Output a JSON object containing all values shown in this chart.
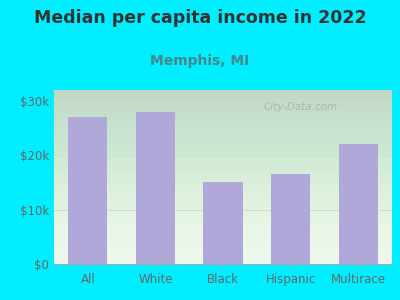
{
  "title": "Median per capita income in 2022",
  "subtitle": "Memphis, MI",
  "categories": [
    "All",
    "White",
    "Black",
    "Hispanic",
    "Multirace"
  ],
  "values": [
    27000,
    28000,
    15000,
    16500,
    22000
  ],
  "bar_color": "#b0a8d8",
  "background_outer": "#00eeff",
  "background_inner_top": "#e8f5e8",
  "background_inner_bottom": "#f5fff5",
  "title_fontsize": 12.5,
  "subtitle_fontsize": 10,
  "tick_label_fontsize": 8.5,
  "title_color": "#333333",
  "subtitle_color": "#448888",
  "axis_label_color": "#666666",
  "ylim": [
    0,
    32000
  ],
  "yticks": [
    0,
    10000,
    20000,
    30000
  ],
  "ytick_labels": [
    "$0",
    "$10k",
    "$20k",
    "$30k"
  ],
  "watermark": "City-Data.com"
}
